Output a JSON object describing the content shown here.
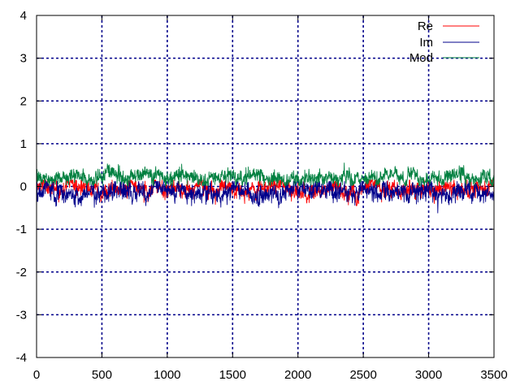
{
  "chart_data": {
    "type": "line",
    "title": "",
    "xlabel": "",
    "ylabel": "",
    "xlim": [
      0,
      3500
    ],
    "ylim": [
      -4,
      4
    ],
    "x_ticks": [
      0,
      500,
      1000,
      1500,
      2000,
      2500,
      3000,
      3500
    ],
    "y_ticks": [
      -4,
      -3,
      -2,
      -1,
      0,
      1,
      2,
      3,
      4
    ],
    "grid": true,
    "grid_color": "#00008b",
    "legend_position": "top-right",
    "n_points": 3500,
    "series": [
      {
        "name": "Re",
        "color": "#ff0000",
        "mean": -0.05,
        "noise": 0.09,
        "min": -0.45,
        "max": 0.15
      },
      {
        "name": "Im",
        "color": "#00008b",
        "mean": -0.12,
        "noise": 0.1,
        "min": -0.62,
        "max": 0.12
      },
      {
        "name": "Mod",
        "color": "#008040",
        "mean": 0.22,
        "noise": 0.08,
        "min": 0.02,
        "max": 0.58
      }
    ]
  }
}
